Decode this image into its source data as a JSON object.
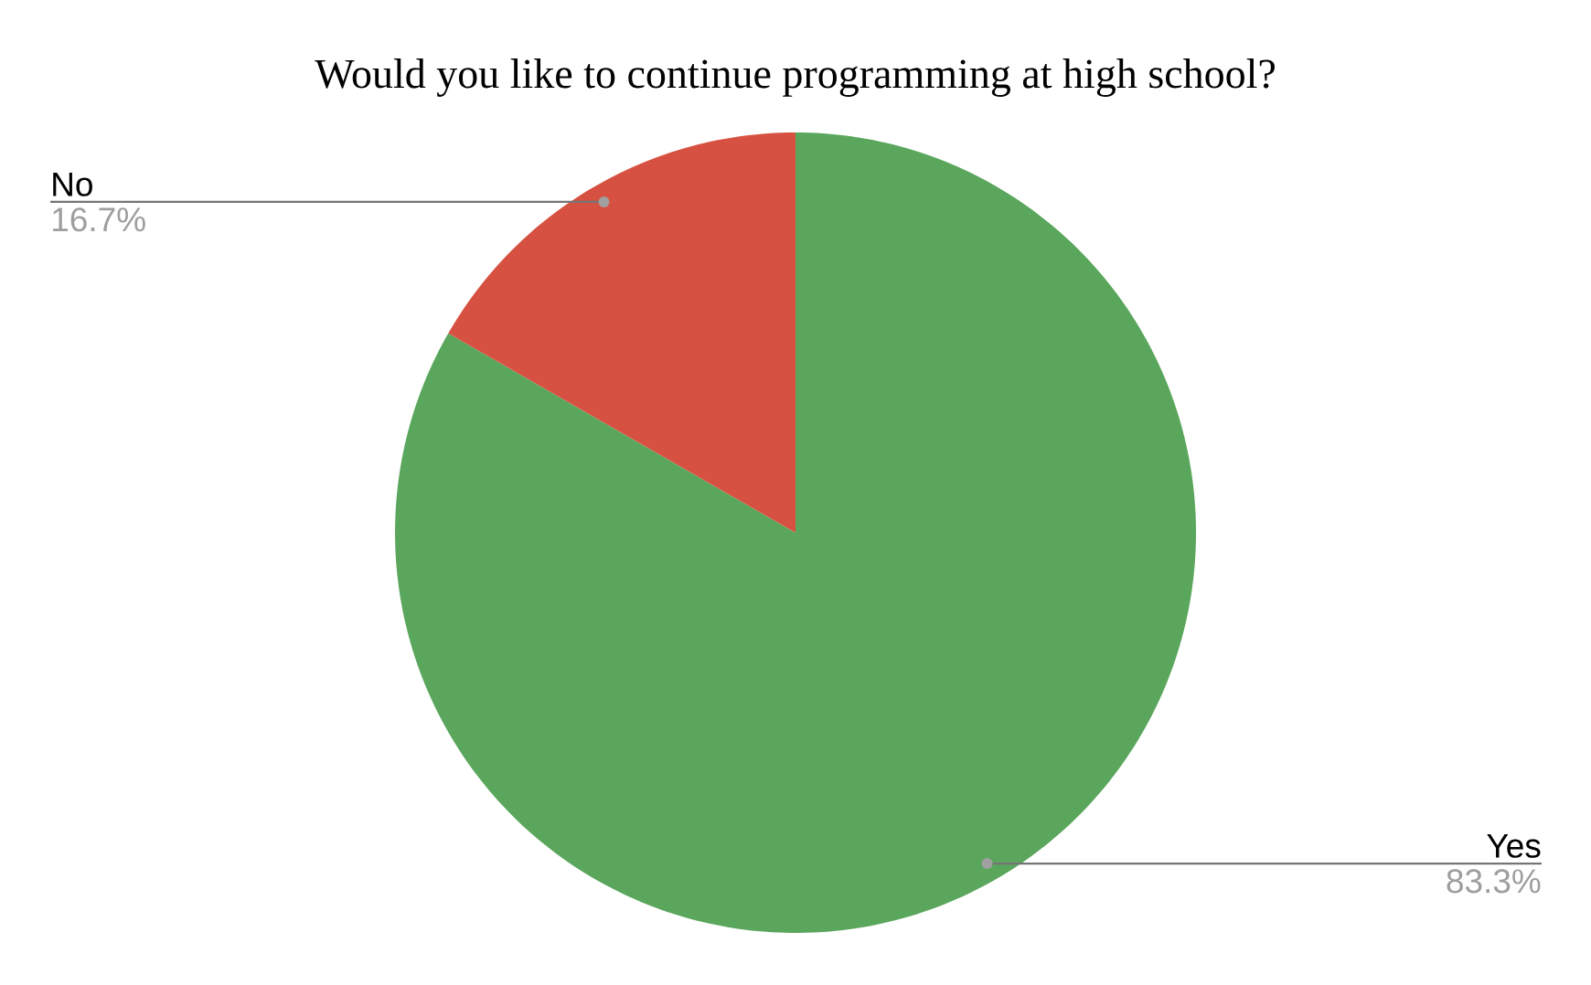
{
  "chart_data": {
    "type": "pie",
    "title": "Would you like to continue programming at high school?",
    "categories": [
      "Yes",
      "No"
    ],
    "values": [
      83.3,
      16.7
    ],
    "colors": [
      "#5aa65c",
      "#d65141"
    ],
    "value_labels": [
      "83.3%",
      "16.7%"
    ]
  }
}
